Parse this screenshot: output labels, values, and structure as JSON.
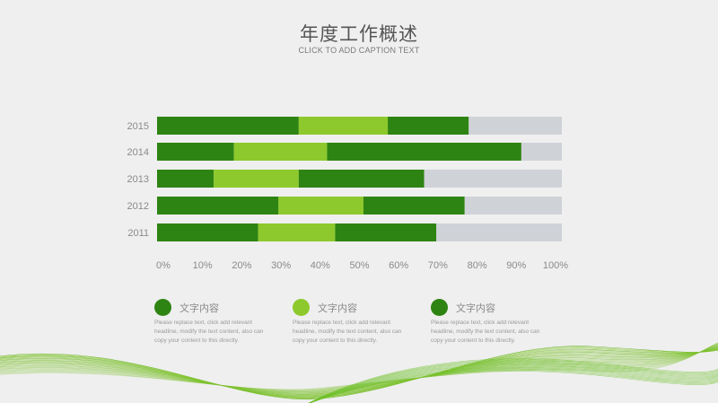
{
  "header": {
    "title": "年度工作概述",
    "subtitle": "CLICK TO ADD CAPTION TEXT"
  },
  "colors": {
    "dark_green": "#2e8412",
    "light_green": "#8dc92c",
    "remainder_gray": "#cfd2d7",
    "axis_text": "#8a8a8a"
  },
  "chart_data": {
    "type": "bar",
    "orientation": "horizontal",
    "stacked": true,
    "categories": [
      "2015",
      "2014",
      "2013",
      "2012",
      "2011"
    ],
    "series": [
      {
        "color": "#2e8412",
        "values": [
          35,
          19,
          14,
          30,
          25
        ]
      },
      {
        "color": "#8dc92c",
        "values": [
          22,
          23,
          21,
          21,
          19
        ]
      },
      {
        "color": "#2e8412",
        "values": [
          20,
          48,
          31,
          25,
          25
        ]
      },
      {
        "color": "#cfd2d7",
        "values": [
          23,
          10,
          34,
          24,
          31
        ]
      }
    ],
    "xlim": [
      0,
      100
    ],
    "xticks": [
      "0%",
      "10%",
      "20%",
      "30%",
      "40%",
      "50%",
      "60%",
      "70%",
      "80%",
      "90%",
      "100%"
    ],
    "grid": false,
    "legend": "bottom"
  },
  "legend": [
    {
      "label": "文字内容",
      "color": "#2e8412",
      "description": "Please replace text, click add relevant headline, modify the text content, also can copy your content to this directly."
    },
    {
      "label": "文字内容",
      "color": "#8dc92c",
      "description": "Please replace text, click add relevant headline, modify the text content, also can copy your content to this directly."
    },
    {
      "label": "文字内容",
      "color": "#2e8412",
      "description": "Please replace text, click add relevant headline, modify the text content, also can copy your content to this directly."
    }
  ]
}
